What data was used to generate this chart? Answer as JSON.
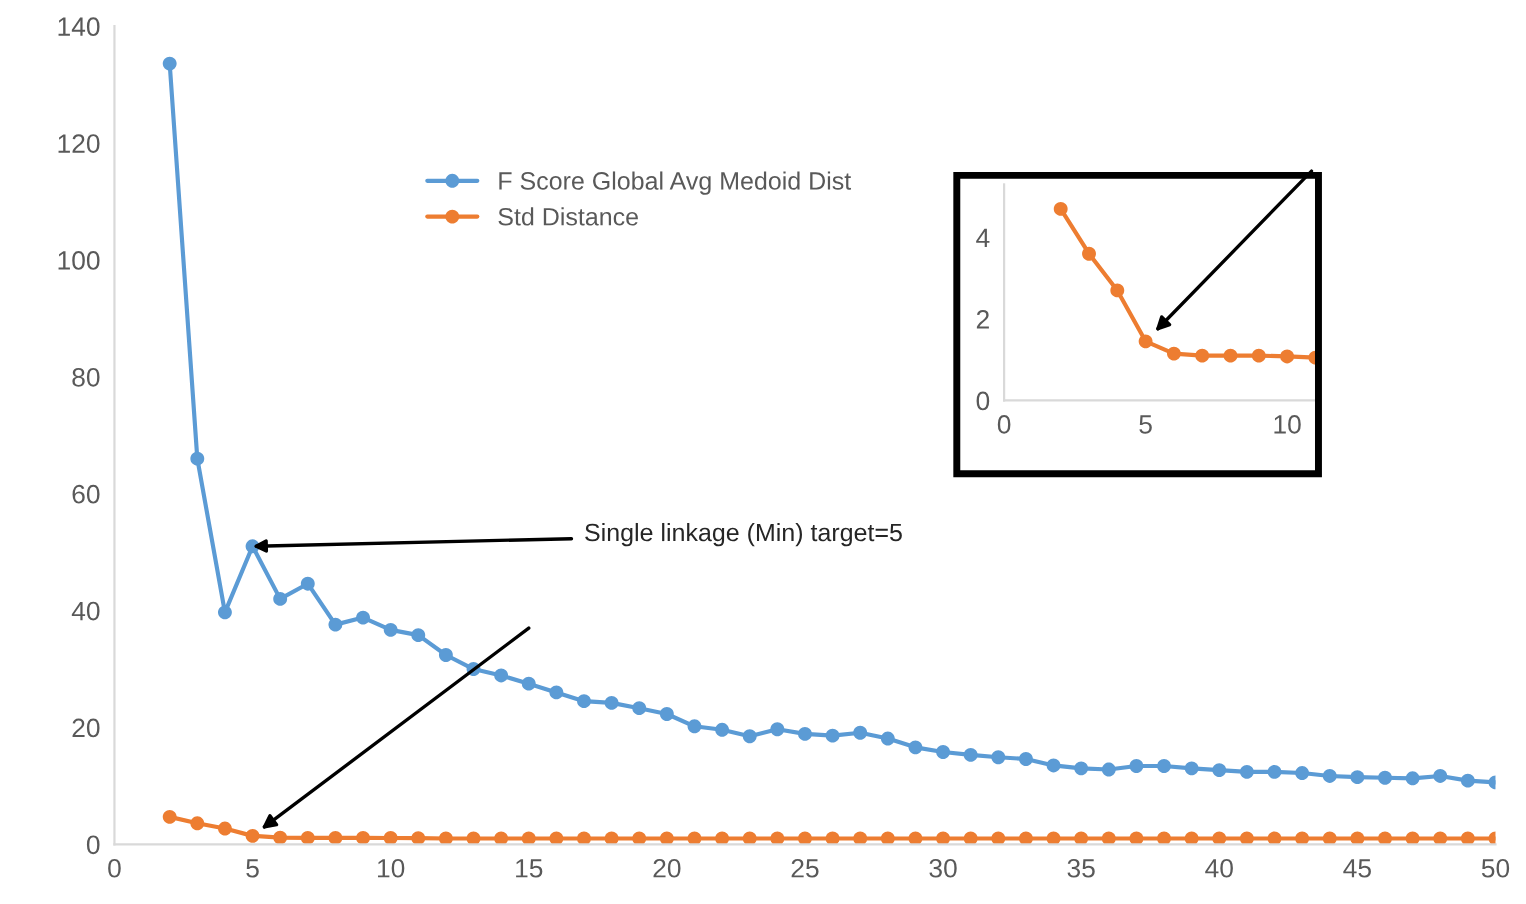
{
  "chart_data": [
    {
      "type": "line",
      "x": [
        2,
        3,
        4,
        5,
        6,
        7,
        8,
        9,
        10,
        11,
        12,
        13,
        14,
        15,
        16,
        17,
        18,
        19,
        20,
        21,
        22,
        23,
        24,
        25,
        26,
        27,
        28,
        29,
        30,
        31,
        32,
        33,
        34,
        35,
        36,
        37,
        38,
        39,
        40,
        41,
        42,
        43,
        44,
        45,
        46,
        47,
        48,
        49,
        50
      ],
      "series": [
        {
          "name": "F Score Global Avg Medoid Dist",
          "color": "#5b9bd5",
          "values": [
            133.6,
            66,
            39.7,
            51,
            42,
            44.6,
            37.6,
            38.8,
            36.7,
            35.8,
            32.4,
            30,
            28.9,
            27.5,
            26,
            24.5,
            24.2,
            23.3,
            22.3,
            20.2,
            19.6,
            18.5,
            19.7,
            18.9,
            18.6,
            19.1,
            18.1,
            16.6,
            15.8,
            15.3,
            14.9,
            14.6,
            13.5,
            13,
            12.8,
            13.4,
            13.4,
            13,
            12.7,
            12.4,
            12.4,
            12.2,
            11.7,
            11.5,
            11.4,
            11.3,
            11.7,
            10.9,
            10.6
          ]
        },
        {
          "name": "Std Distance",
          "color": "#ed7d31",
          "values": [
            4.7,
            3.6,
            2.7,
            1.45,
            1.15,
            1.1,
            1.1,
            1.1,
            1.08,
            1.05,
            1,
            1,
            1,
            1,
            1,
            1,
            1,
            1,
            1,
            1,
            1,
            1,
            1,
            1,
            1,
            1,
            1,
            1,
            1,
            1,
            1,
            1,
            1,
            1,
            1,
            1,
            1,
            1,
            1,
            1,
            1,
            1,
            1,
            1,
            1,
            1,
            1,
            1,
            1
          ]
        }
      ],
      "xlim": [
        0,
        50
      ],
      "xticks": [
        0,
        5,
        10,
        15,
        20,
        25,
        30,
        35,
        40,
        45,
        50
      ],
      "ylim": [
        0,
        140
      ],
      "yticks": [
        0,
        20,
        40,
        60,
        80,
        100,
        120,
        140
      ],
      "marker": "circle",
      "grid": false,
      "legend": "top",
      "annotations": [
        {
          "text": "Single linkage (Min) target=5",
          "x": 5,
          "y": 51
        }
      ]
    },
    {
      "type": "line",
      "x": [
        2,
        3,
        4,
        5,
        6,
        7,
        8,
        9,
        10,
        11
      ],
      "series": [
        {
          "color": "#ed7d31",
          "values": [
            4.7,
            3.6,
            2.7,
            1.45,
            1.15,
            1.1,
            1.1,
            1.1,
            1.08,
            1.05
          ]
        }
      ],
      "xlim": [
        0,
        11
      ],
      "xticks": [
        0,
        5,
        10
      ],
      "ylim": [
        0,
        5.3
      ],
      "yticks": [
        0,
        2,
        4
      ],
      "marker": "circle",
      "grid": false,
      "legend": false
    }
  ]
}
